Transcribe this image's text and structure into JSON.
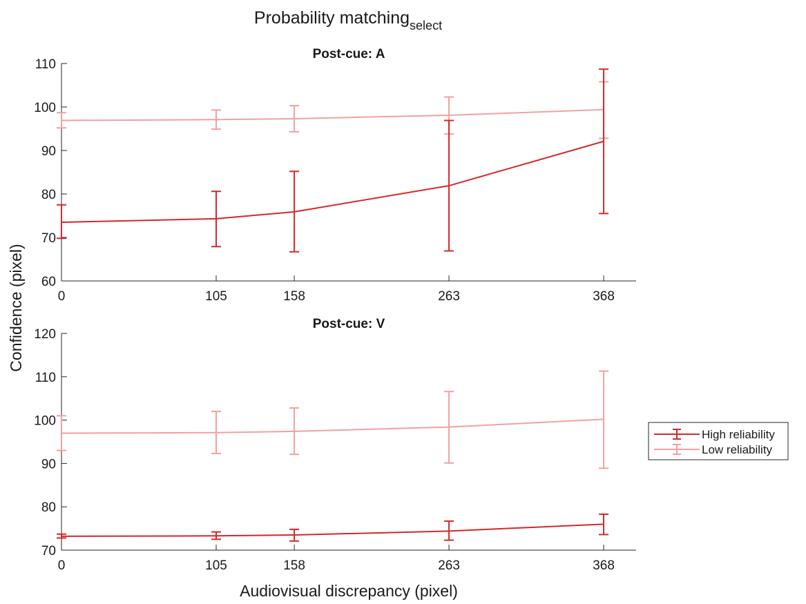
{
  "figure": {
    "title_main": "Probability matching",
    "title_sub": "select",
    "ylabel": "Confidence (pixel)",
    "xlabel": "Audiovisual discrepancy (pixel)"
  },
  "legend": {
    "placement": "right",
    "entries": [
      {
        "label": "High reliability",
        "color": "#d62728"
      },
      {
        "label": "Low reliability",
        "color": "#f4a0a0"
      }
    ]
  },
  "chart_data": [
    {
      "type": "line",
      "title": "Post-cue: A",
      "x": [
        0,
        105,
        158,
        263,
        368
      ],
      "xticks": [
        0,
        105,
        158,
        263,
        368
      ],
      "xlim": [
        0,
        390
      ],
      "ylim": [
        60,
        110
      ],
      "yticks": [
        60,
        70,
        80,
        90,
        100,
        110
      ],
      "grid": false,
      "series": [
        {
          "name": "High reliability",
          "color": "#d62728",
          "values": [
            73.5,
            74.3,
            75.9,
            81.9,
            92.1
          ],
          "err_low": [
            69.8,
            67.9,
            66.7,
            66.9,
            75.5
          ],
          "err_high": [
            77.5,
            80.6,
            85.2,
            96.9,
            108.7
          ]
        },
        {
          "name": "Low reliability",
          "color": "#f4a0a0",
          "values": [
            96.9,
            97.1,
            97.3,
            98.1,
            99.4
          ],
          "err_low": [
            95.2,
            94.9,
            94.3,
            93.8,
            92.8
          ],
          "err_high": [
            98.7,
            99.3,
            100.3,
            102.3,
            105.8
          ]
        }
      ]
    },
    {
      "type": "line",
      "title": "Post-cue: V",
      "x": [
        0,
        105,
        158,
        263,
        368
      ],
      "xticks": [
        0,
        105,
        158,
        263,
        368
      ],
      "xlim": [
        0,
        390
      ],
      "ylim": [
        70,
        120
      ],
      "yticks": [
        70,
        80,
        90,
        100,
        110,
        120
      ],
      "grid": false,
      "series": [
        {
          "name": "High reliability",
          "color": "#d62728",
          "values": [
            73.2,
            73.3,
            73.5,
            74.4,
            76.0
          ],
          "err_low": [
            72.8,
            72.5,
            72.1,
            72.3,
            73.6
          ],
          "err_high": [
            73.7,
            74.2,
            74.8,
            76.7,
            78.3
          ]
        },
        {
          "name": "Low reliability",
          "color": "#f4a0a0",
          "values": [
            97.0,
            97.1,
            97.4,
            98.4,
            100.2
          ],
          "err_low": [
            93.0,
            92.3,
            92.1,
            90.1,
            88.9
          ],
          "err_high": [
            101.0,
            102.0,
            102.8,
            106.6,
            111.3
          ]
        }
      ]
    }
  ]
}
